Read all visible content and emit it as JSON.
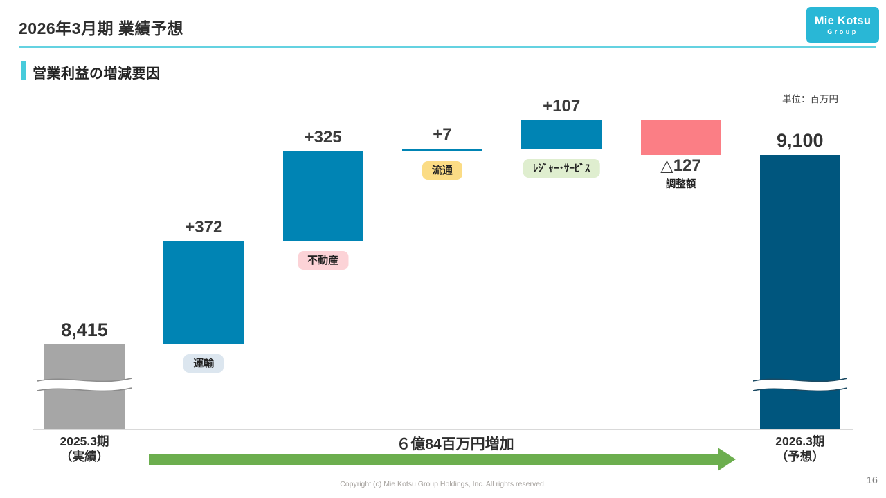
{
  "page": {
    "title": "2026年3月期 業績予想",
    "logo": {
      "line1": "Mie Kotsu",
      "line2": "Group"
    },
    "section_heading": "営業利益の増減要因",
    "unit_label": "単位：百万円",
    "footer": "Copyright (c) Mie Kotsu Group Holdings, Inc. All rights reserved.",
    "page_number": "16"
  },
  "colors": {
    "accent_cyan": "#47cbdb",
    "rule_cyan": "#64d2e1",
    "logo_cyan": "#29b7d6",
    "bar_blue": "#0084b4",
    "bar_dark_blue": "#00567e",
    "bar_gray": "#a6a6a6",
    "bar_pink": "#fb7e85",
    "arrow_green": "#6cae4e"
  },
  "chart_data": {
    "type": "waterfall-bar",
    "title": "営業利益の増減要因",
    "unit": "百万円",
    "start_value": 8415,
    "end_value": 9100,
    "categories": [
      "2025.3期（実績）",
      "運輸",
      "不動産",
      "流通",
      "レジャー・サービス",
      "調整額",
      "2026.3期（予想）"
    ],
    "values": [
      8415,
      372,
      325,
      7,
      107,
      -127,
      9100
    ],
    "axis_break": true,
    "arrow_label": "６億84百万円増加",
    "bars": [
      {
        "name": "bar-2025-actual",
        "kind": "total",
        "value": 8415,
        "label": "8,415",
        "axis_line1": "2025.3期",
        "axis_line2": "（実績）",
        "color": "#a6a6a6",
        "broken": true,
        "wave_stroke": "#8c8c8c"
      },
      {
        "name": "bar-transport",
        "kind": "delta",
        "value": 372,
        "label": "+372",
        "tag": "運輸",
        "tag_bg": "#dce6ef",
        "color": "#0084b4"
      },
      {
        "name": "bar-real-estate",
        "kind": "delta",
        "value": 325,
        "label": "+325",
        "tag": "不動産",
        "tag_bg": "#fcd3d7",
        "color": "#0084b4"
      },
      {
        "name": "bar-distribution",
        "kind": "delta",
        "value": 7,
        "label": "+7",
        "tag": "流通",
        "tag_bg": "#fbdc85",
        "color": "#0084b4"
      },
      {
        "name": "bar-leisure-service",
        "kind": "delta",
        "value": 107,
        "label": "+107",
        "tag": "ﾚｼﾞｬｰ･ｻｰﾋﾞｽ",
        "tag_bg": "#dfeecf",
        "color": "#0084b4"
      },
      {
        "name": "bar-adjustment",
        "kind": "delta",
        "value": -127,
        "label": "△127",
        "sub_label": "調整額",
        "color": "#fb7e85"
      },
      {
        "name": "bar-2026-forecast",
        "kind": "total",
        "value": 9100,
        "label": "9,100",
        "axis_line1": "2026.3期",
        "axis_line2": "（予想）",
        "color": "#00567e",
        "broken": true,
        "wave_stroke": "#1b4a63"
      }
    ]
  }
}
